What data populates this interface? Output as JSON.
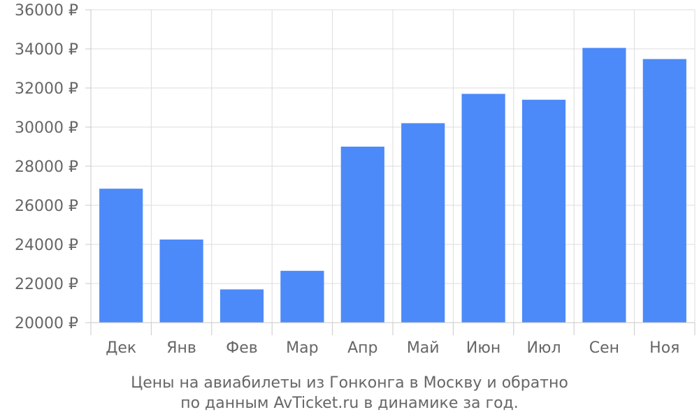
{
  "chart_data": {
    "type": "bar",
    "categories": [
      "Дек",
      "Янв",
      "Фев",
      "Мар",
      "Апр",
      "Май",
      "Июн",
      "Июл",
      "Сен",
      "Ноя"
    ],
    "values": [
      26850,
      24250,
      21700,
      22650,
      29000,
      30200,
      31700,
      31400,
      34050,
      33480
    ],
    "ylim": [
      20000,
      36000
    ],
    "y_ticks": [
      20000,
      22000,
      24000,
      26000,
      28000,
      30000,
      32000,
      34000,
      36000
    ],
    "y_unit": "₽",
    "bar_color": "#4d8af9",
    "grid": true,
    "caption_lines": [
      "Цены на авиабилеты из Гонконга в Москву и обратно",
      "по данным AvTicket.ru в динамике за год."
    ]
  }
}
